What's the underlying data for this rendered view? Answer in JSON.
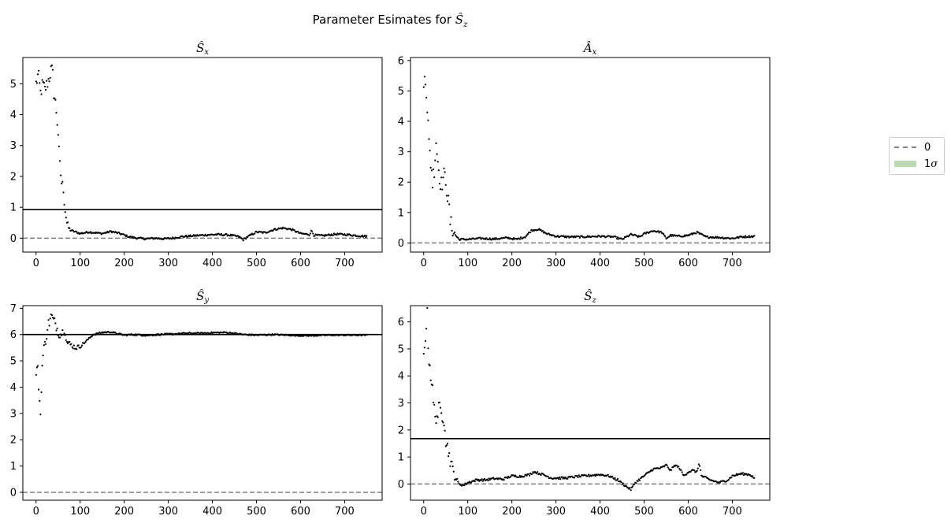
{
  "suptitle": {
    "prefix": "Parameter Esimates for ",
    "math": "Ŝ",
    "sub": "z"
  },
  "legend": {
    "entries": [
      {
        "label": "0",
        "style": "dashed",
        "color": "#7f7f7f"
      },
      {
        "label": "1σ",
        "style": "patch",
        "color": "#b5d6ab"
      }
    ]
  },
  "colors": {
    "points": "#000000",
    "zero_line": "#7f7f7f",
    "true_line": "#000000"
  },
  "chart_data": [
    {
      "type": "scatter",
      "title": "Ŝx",
      "title_base": "Ŝ",
      "title_sub": "x",
      "xlim": [
        -30,
        785
      ],
      "ylim": [
        -0.45,
        5.85
      ],
      "xticks": [
        0,
        100,
        200,
        300,
        400,
        500,
        600,
        700
      ],
      "yticks": [
        0,
        1,
        2,
        3,
        4,
        5
      ],
      "true_value": 0.93,
      "zero_line": 0,
      "anchors": [
        [
          0,
          5.0
        ],
        [
          5,
          5.3
        ],
        [
          10,
          4.7
        ],
        [
          15,
          5.0
        ],
        [
          20,
          4.8
        ],
        [
          25,
          5.0
        ],
        [
          30,
          5.2
        ],
        [
          35,
          5.5
        ],
        [
          38,
          5.3
        ],
        [
          40,
          4.7
        ],
        [
          45,
          4.3
        ],
        [
          50,
          3.4
        ],
        [
          53,
          2.5
        ],
        [
          55,
          2.2
        ],
        [
          58,
          1.8
        ],
        [
          62,
          1.6
        ],
        [
          65,
          1.0
        ],
        [
          70,
          0.5
        ],
        [
          75,
          0.3
        ],
        [
          80,
          0.25
        ],
        [
          90,
          0.2
        ],
        [
          100,
          0.15
        ],
        [
          120,
          0.2
        ],
        [
          150,
          0.15
        ],
        [
          170,
          0.22
        ],
        [
          190,
          0.15
        ],
        [
          210,
          0.05
        ],
        [
          230,
          0.0
        ],
        [
          250,
          -0.02
        ],
        [
          270,
          0.0
        ],
        [
          290,
          -0.02
        ],
        [
          310,
          0.0
        ],
        [
          330,
          0.05
        ],
        [
          350,
          0.07
        ],
        [
          380,
          0.1
        ],
        [
          410,
          0.12
        ],
        [
          440,
          0.1
        ],
        [
          460,
          0.05
        ],
        [
          470,
          -0.05
        ],
        [
          480,
          0.05
        ],
        [
          500,
          0.2
        ],
        [
          520,
          0.18
        ],
        [
          540,
          0.28
        ],
        [
          560,
          0.33
        ],
        [
          580,
          0.28
        ],
        [
          600,
          0.15
        ],
        [
          620,
          0.12
        ],
        [
          625,
          0.25
        ],
        [
          630,
          0.1
        ],
        [
          650,
          0.08
        ],
        [
          680,
          0.13
        ],
        [
          700,
          0.12
        ],
        [
          730,
          0.08
        ],
        [
          750,
          0.06
        ]
      ],
      "scatter_amp": [
        [
          0,
          0.25
        ],
        [
          60,
          0.2
        ],
        [
          80,
          0.03
        ],
        [
          750,
          0.03
        ]
      ]
    },
    {
      "type": "scatter",
      "title": "Âx",
      "title_base": "Â",
      "title_sub": "x",
      "xlim": [
        -30,
        785
      ],
      "ylim": [
        -0.3,
        6.1
      ],
      "xticks": [
        0,
        100,
        200,
        300,
        400,
        500,
        600,
        700
      ],
      "yticks": [
        0,
        1,
        2,
        3,
        4,
        5,
        6
      ],
      "true_value": null,
      "zero_line": 0,
      "anchors": [
        [
          0,
          5.0
        ],
        [
          3,
          5.8
        ],
        [
          5,
          5.3
        ],
        [
          8,
          4.5
        ],
        [
          10,
          3.9
        ],
        [
          12,
          3.2
        ],
        [
          15,
          2.8
        ],
        [
          18,
          2.4
        ],
        [
          20,
          2.0
        ],
        [
          25,
          2.6
        ],
        [
          28,
          3.4
        ],
        [
          30,
          3.0
        ],
        [
          35,
          2.3
        ],
        [
          40,
          1.9
        ],
        [
          45,
          2.2
        ],
        [
          50,
          2.1
        ],
        [
          55,
          1.4
        ],
        [
          58,
          1.1
        ],
        [
          60,
          0.7
        ],
        [
          65,
          0.45
        ],
        [
          70,
          0.3
        ],
        [
          80,
          0.12
        ],
        [
          100,
          0.12
        ],
        [
          130,
          0.15
        ],
        [
          160,
          0.13
        ],
        [
          190,
          0.17
        ],
        [
          210,
          0.12
        ],
        [
          230,
          0.2
        ],
        [
          245,
          0.42
        ],
        [
          260,
          0.45
        ],
        [
          280,
          0.3
        ],
        [
          300,
          0.22
        ],
        [
          330,
          0.2
        ],
        [
          360,
          0.2
        ],
        [
          400,
          0.22
        ],
        [
          430,
          0.2
        ],
        [
          450,
          0.12
        ],
        [
          470,
          0.28
        ],
        [
          490,
          0.2
        ],
        [
          500,
          0.3
        ],
        [
          520,
          0.4
        ],
        [
          540,
          0.35
        ],
        [
          550,
          0.15
        ],
        [
          560,
          0.25
        ],
        [
          580,
          0.22
        ],
        [
          600,
          0.25
        ],
        [
          620,
          0.35
        ],
        [
          640,
          0.2
        ],
        [
          670,
          0.18
        ],
        [
          700,
          0.15
        ],
        [
          720,
          0.2
        ],
        [
          750,
          0.22
        ]
      ],
      "scatter_amp": [
        [
          0,
          0.35
        ],
        [
          60,
          0.3
        ],
        [
          80,
          0.03
        ],
        [
          750,
          0.03
        ]
      ]
    },
    {
      "type": "scatter",
      "title": "Ŝy",
      "title_base": "Ŝ",
      "title_sub": "y",
      "xlim": [
        -30,
        785
      ],
      "ylim": [
        -0.3,
        7.1
      ],
      "xticks": [
        0,
        100,
        200,
        300,
        400,
        500,
        600,
        700
      ],
      "yticks": [
        0,
        1,
        2,
        3,
        4,
        5,
        6,
        7
      ],
      "true_value": 6.0,
      "zero_line": 0,
      "anchors": [
        [
          0,
          4.7
        ],
        [
          5,
          4.5
        ],
        [
          8,
          3.5
        ],
        [
          10,
          2.9
        ],
        [
          12,
          4.1
        ],
        [
          15,
          5.1
        ],
        [
          20,
          5.6
        ],
        [
          25,
          6.2
        ],
        [
          30,
          6.5
        ],
        [
          35,
          6.7
        ],
        [
          40,
          6.5
        ],
        [
          45,
          6.4
        ],
        [
          50,
          6.1
        ],
        [
          55,
          6.0
        ],
        [
          60,
          6.1
        ],
        [
          65,
          6.2
        ],
        [
          70,
          5.7
        ],
        [
          80,
          5.6
        ],
        [
          90,
          5.5
        ],
        [
          100,
          5.55
        ],
        [
          110,
          5.7
        ],
        [
          120,
          5.85
        ],
        [
          130,
          6.0
        ],
        [
          150,
          6.08
        ],
        [
          170,
          6.1
        ],
        [
          180,
          6.05
        ],
        [
          200,
          5.98
        ],
        [
          220,
          6.0
        ],
        [
          250,
          5.97
        ],
        [
          280,
          6.0
        ],
        [
          310,
          6.02
        ],
        [
          340,
          6.05
        ],
        [
          370,
          6.05
        ],
        [
          400,
          6.07
        ],
        [
          430,
          6.08
        ],
        [
          450,
          6.05
        ],
        [
          470,
          6.0
        ],
        [
          500,
          5.98
        ],
        [
          540,
          6.0
        ],
        [
          570,
          5.98
        ],
        [
          600,
          5.96
        ],
        [
          630,
          5.96
        ],
        [
          660,
          5.98
        ],
        [
          700,
          5.98
        ],
        [
          740,
          5.98
        ],
        [
          750,
          5.98
        ]
      ],
      "scatter_amp": [
        [
          0,
          0.35
        ],
        [
          60,
          0.15
        ],
        [
          120,
          0.03
        ],
        [
          750,
          0.02
        ]
      ]
    },
    {
      "type": "scatter",
      "title": "Ŝz",
      "title_base": "Ŝ",
      "title_sub": "z",
      "xlim": [
        -30,
        785
      ],
      "ylim": [
        -0.6,
        6.6
      ],
      "xticks": [
        0,
        100,
        200,
        300,
        400,
        500,
        600,
        700
      ],
      "yticks": [
        0,
        1,
        2,
        3,
        4,
        5,
        6
      ],
      "true_value": 1.68,
      "zero_line": 0,
      "anchors": [
        [
          0,
          4.7
        ],
        [
          3,
          5.4
        ],
        [
          6,
          5.9
        ],
        [
          8,
          6.2
        ],
        [
          10,
          5.2
        ],
        [
          12,
          4.7
        ],
        [
          15,
          4.2
        ],
        [
          18,
          3.8
        ],
        [
          22,
          3.0
        ],
        [
          25,
          2.6
        ],
        [
          30,
          2.5
        ],
        [
          35,
          2.8
        ],
        [
          40,
          2.6
        ],
        [
          45,
          2.5
        ],
        [
          48,
          2.2
        ],
        [
          50,
          1.6
        ],
        [
          55,
          1.3
        ],
        [
          60,
          0.9
        ],
        [
          65,
          0.6
        ],
        [
          70,
          0.3
        ],
        [
          80,
          0.0
        ],
        [
          90,
          -0.05
        ],
        [
          100,
          0.05
        ],
        [
          120,
          0.15
        ],
        [
          140,
          0.15
        ],
        [
          160,
          0.2
        ],
        [
          180,
          0.18
        ],
        [
          200,
          0.3
        ],
        [
          220,
          0.28
        ],
        [
          240,
          0.35
        ],
        [
          250,
          0.45
        ],
        [
          270,
          0.35
        ],
        [
          290,
          0.22
        ],
        [
          320,
          0.22
        ],
        [
          350,
          0.28
        ],
        [
          380,
          0.32
        ],
        [
          400,
          0.35
        ],
        [
          420,
          0.3
        ],
        [
          440,
          0.15
        ],
        [
          460,
          -0.1
        ],
        [
          470,
          -0.2
        ],
        [
          480,
          0.05
        ],
        [
          500,
          0.3
        ],
        [
          520,
          0.55
        ],
        [
          540,
          0.6
        ],
        [
          550,
          0.7
        ],
        [
          560,
          0.5
        ],
        [
          570,
          0.7
        ],
        [
          580,
          0.6
        ],
        [
          590,
          0.3
        ],
        [
          600,
          0.45
        ],
        [
          610,
          0.5
        ],
        [
          620,
          0.45
        ],
        [
          625,
          0.8
        ],
        [
          630,
          0.3
        ],
        [
          650,
          0.15
        ],
        [
          670,
          0.05
        ],
        [
          690,
          0.15
        ],
        [
          700,
          0.3
        ],
        [
          720,
          0.38
        ],
        [
          740,
          0.35
        ],
        [
          750,
          0.22
        ]
      ],
      "scatter_amp": [
        [
          0,
          0.35
        ],
        [
          60,
          0.25
        ],
        [
          80,
          0.04
        ],
        [
          750,
          0.04
        ]
      ]
    }
  ]
}
